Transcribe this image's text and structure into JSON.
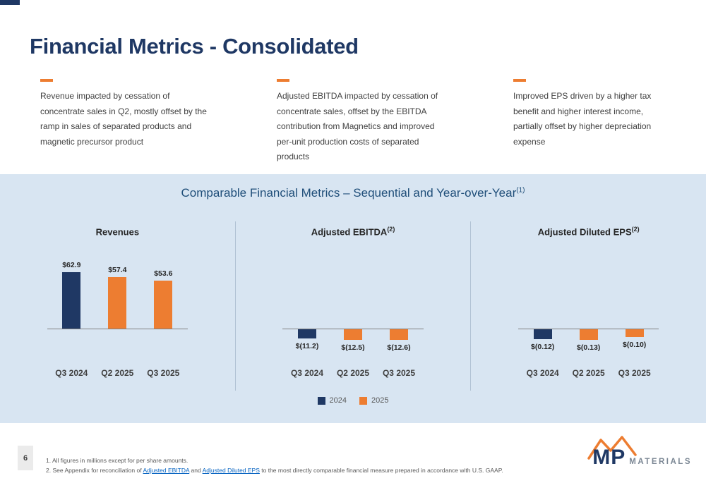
{
  "slide": {
    "title": "Financial Metrics - Consolidated",
    "bullets": [
      "Revenue impacted by cessation of concentrate sales in Q2, mostly offset by the ramp in sales of separated products and magnetic precursor product",
      "Adjusted EBITDA impacted by cessation of concentrate sales, offset by the EBITDA contribution from Magnetics and improved per-unit production costs of separated products",
      "Improved EPS driven by a higher tax benefit and higher interest income, partially offset by higher depreciation expense"
    ],
    "page_number": "6"
  },
  "section": {
    "heading": "Comparable Financial Metrics – Sequential and Year-over-Year",
    "heading_superscript": "(1)"
  },
  "chart_data": [
    {
      "type": "bar",
      "title": "Revenues",
      "title_superscript": "",
      "categories": [
        "Q3 2024",
        "Q2 2025",
        "Q3 2025"
      ],
      "values": [
        62.9,
        57.4,
        53.6
      ],
      "value_labels": [
        "$62.9",
        "$57.4",
        "$53.6"
      ],
      "series_colors": [
        "#1F3864",
        "#ED7D31",
        "#ED7D31"
      ]
    },
    {
      "type": "bar",
      "title": "Adjusted EBITDA",
      "title_superscript": "(2)",
      "categories": [
        "Q3 2024",
        "Q2 2025",
        "Q3 2025"
      ],
      "values": [
        -11.2,
        -12.5,
        -12.6
      ],
      "value_labels": [
        "$(11.2)",
        "$(12.5)",
        "$(12.6)"
      ],
      "series_colors": [
        "#1F3864",
        "#ED7D31",
        "#ED7D31"
      ]
    },
    {
      "type": "bar",
      "title": "Adjusted Diluted EPS",
      "title_superscript": "(2)",
      "categories": [
        "Q3 2024",
        "Q2 2025",
        "Q3 2025"
      ],
      "values": [
        -0.12,
        -0.13,
        -0.1
      ],
      "value_labels": [
        "$(0.12)",
        "$(0.13)",
        "$(0.10)"
      ],
      "series_colors": [
        "#1F3864",
        "#ED7D31",
        "#ED7D31"
      ]
    }
  ],
  "legend": [
    {
      "label": "2024",
      "color": "#1F3864"
    },
    {
      "label": "2025",
      "color": "#ED7D31"
    }
  ],
  "footnotes": {
    "line1": "1. All figures in millions except for per share amounts.",
    "line2_prefix": "2. See Appendix for reconciliation of ",
    "line2_link1": "Adjusted EBITDA",
    "line2_mid": " and ",
    "line2_link2": "Adjusted Diluted EPS",
    "line2_suffix": " to the most directly comparable financial measure prepared in accordance with U.S. GAAP."
  },
  "logo": {
    "mp": "MP",
    "materials": "MATERIALS"
  },
  "colors": {
    "navy": "#1F3864",
    "orange": "#ED7D31",
    "band_blue": "#D8E5F2",
    "link_blue": "#0563C1"
  }
}
